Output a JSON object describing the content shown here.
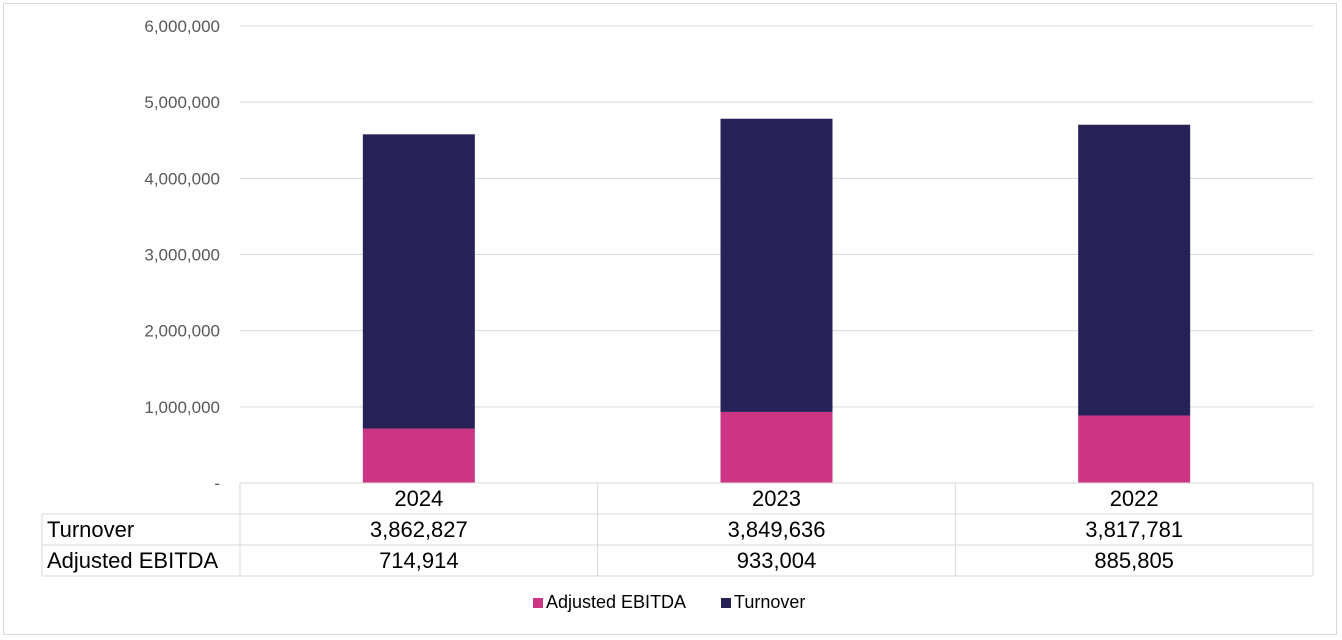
{
  "chart_data": {
    "type": "bar",
    "stacked": true,
    "categories": [
      "2024",
      "2023",
      "2022"
    ],
    "series": [
      {
        "name": "Adjusted EBITDA",
        "color": "#cc3584",
        "values": [
          714914,
          933004,
          885805
        ],
        "display": [
          "714,914",
          "933,004",
          "885,805"
        ]
      },
      {
        "name": "Turnover",
        "color": "#262257",
        "values": [
          3862827,
          3849636,
          3817781
        ],
        "display": [
          "3,862,827",
          "3,849,636",
          "3,817,781"
        ]
      }
    ],
    "ylim": [
      0,
      6000000
    ],
    "yticks": [
      0,
      1000000,
      2000000,
      3000000,
      4000000,
      5000000,
      6000000
    ],
    "ytick_labels": [
      "-",
      "1,000,000",
      "2,000,000",
      "3,000,000",
      "4,000,000",
      "5,000,000",
      "6,000,000"
    ],
    "table_rows": [
      {
        "label": "Turnover",
        "series_index": 1
      },
      {
        "label": "Adjusted EBITDA",
        "series_index": 0
      }
    ],
    "grid": true,
    "legend": "bottom"
  }
}
